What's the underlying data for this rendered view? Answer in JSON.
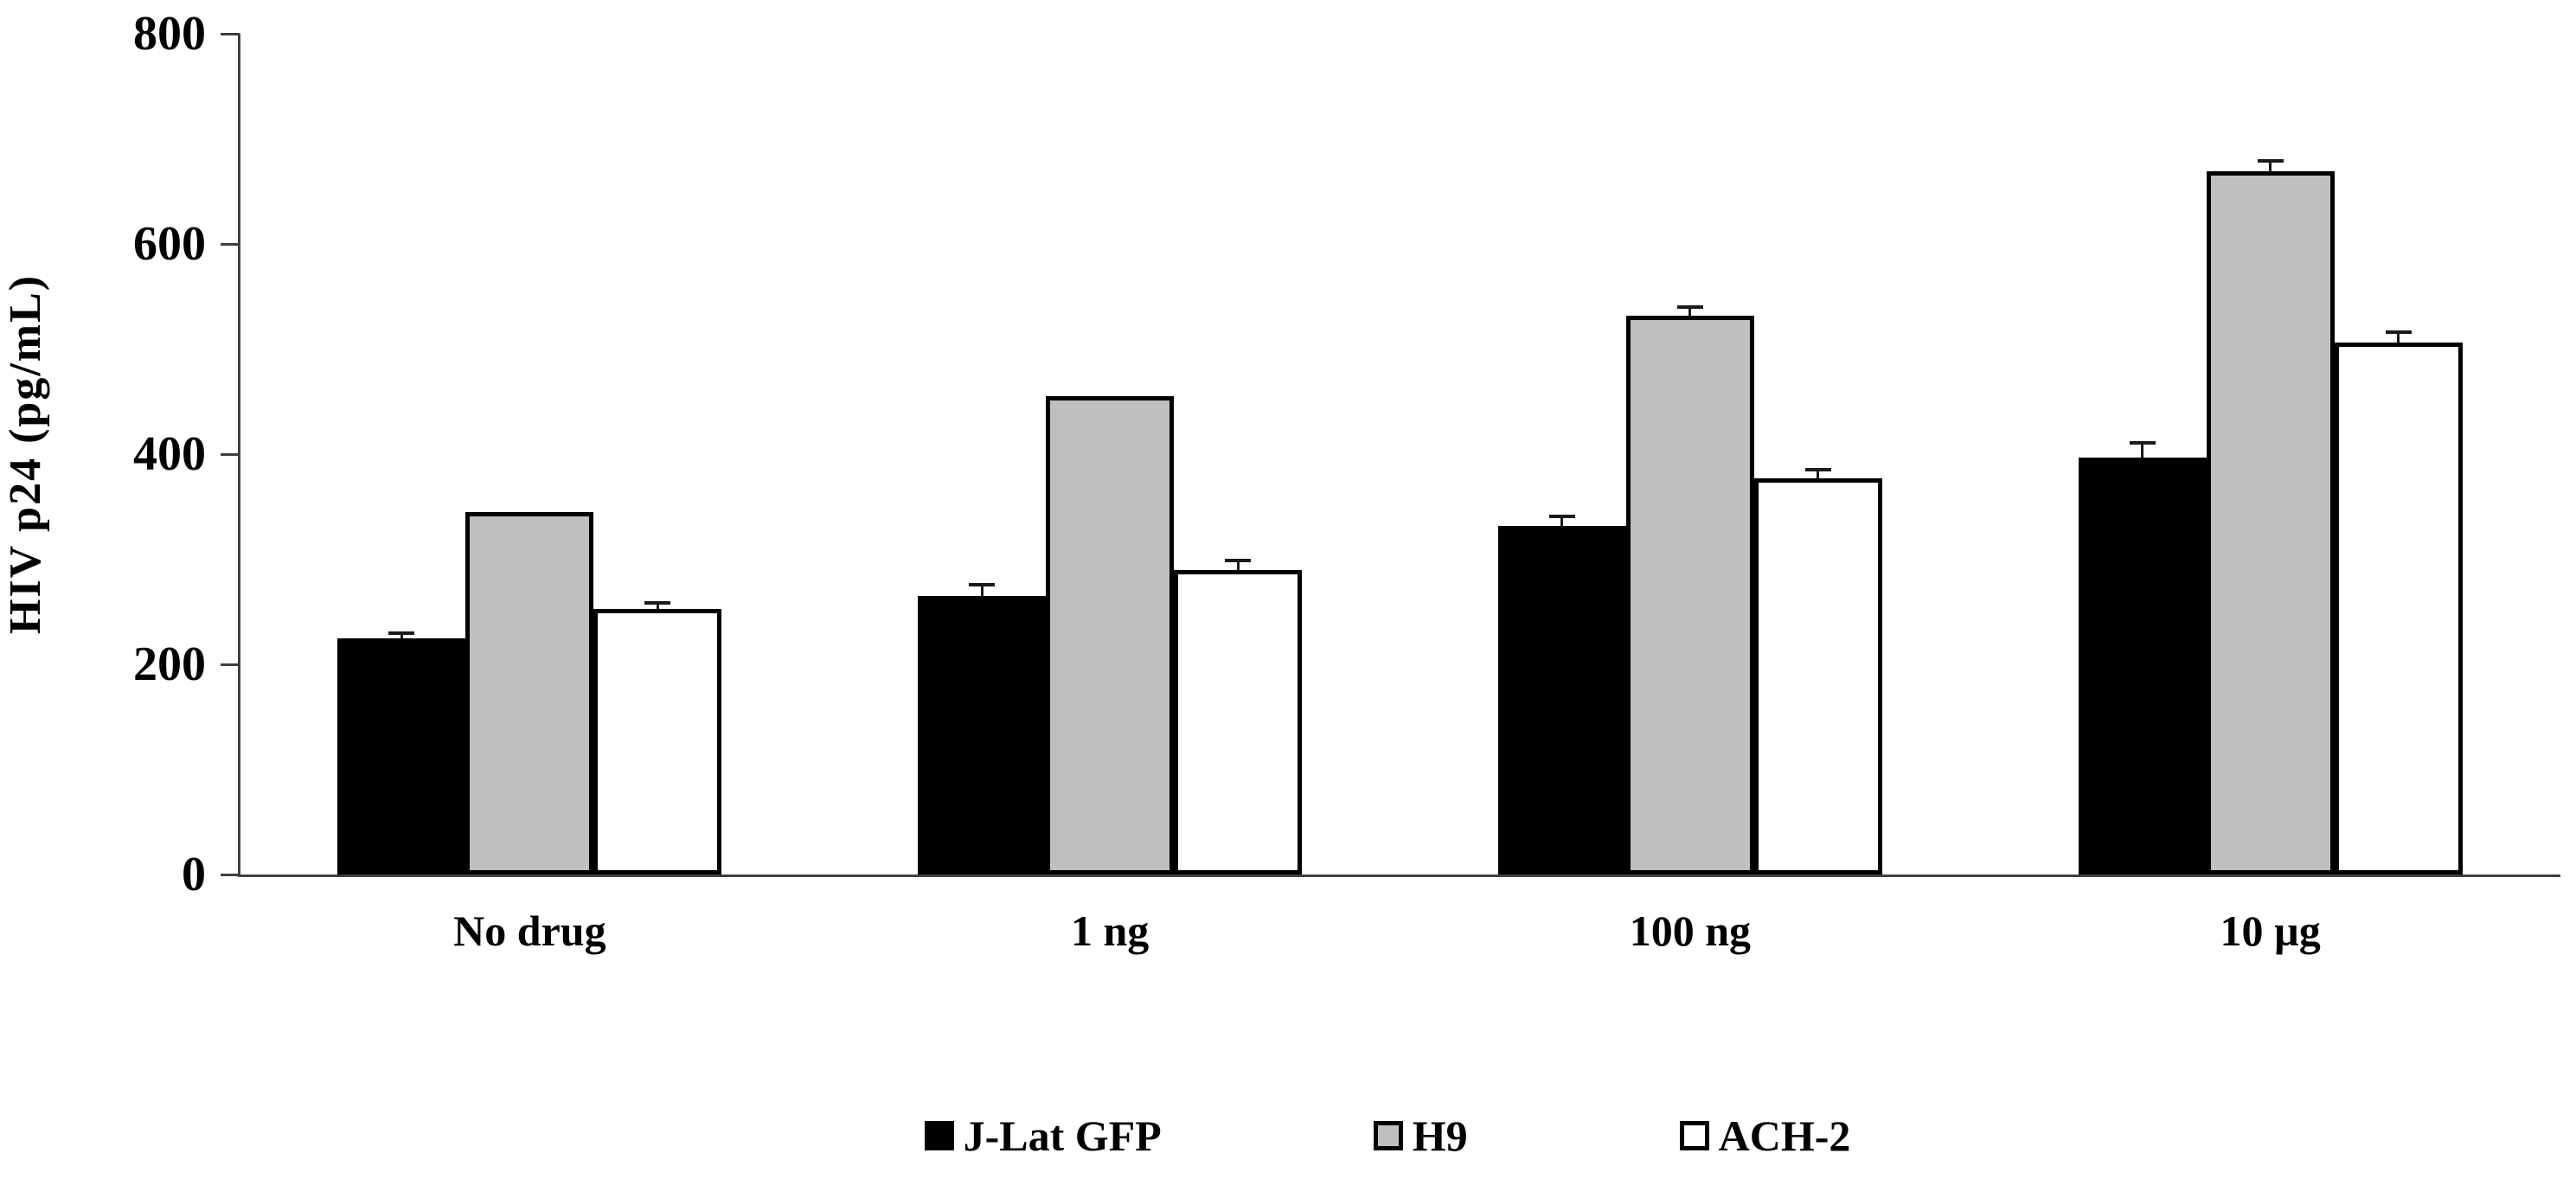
{
  "chart_data": {
    "type": "bar",
    "title": "",
    "ylabel": "HIV p24 (pg/mL)",
    "xlabel": "",
    "ylim": [
      0,
      800
    ],
    "yticks": [
      0,
      200,
      400,
      600,
      800
    ],
    "categories": [
      "No drug",
      "1 ng",
      "100 ng",
      "10 µg"
    ],
    "series": [
      {
        "name": "J-Lat GFP",
        "fill": "#000000",
        "border": "#000000",
        "values": [
          225,
          265,
          332,
          397
        ],
        "errors_up": [
          4,
          10,
          8,
          13
        ]
      },
      {
        "name": "H9",
        "fill": "#bfbfbf",
        "border": "#000000",
        "values": [
          345,
          455,
          532,
          669
        ],
        "errors_up": [
          0,
          0,
          7,
          9
        ]
      },
      {
        "name": "ACH-2",
        "fill": "#ffffff",
        "border": "#000000",
        "values": [
          253,
          290,
          377,
          506
        ],
        "errors_up": [
          5,
          8,
          7,
          9
        ]
      }
    ],
    "legend_position": "bottom-center",
    "error_bars": "upper-only-with-caps",
    "grid": false,
    "axis_color": "#3f3f3f",
    "background": "#ffffff"
  }
}
